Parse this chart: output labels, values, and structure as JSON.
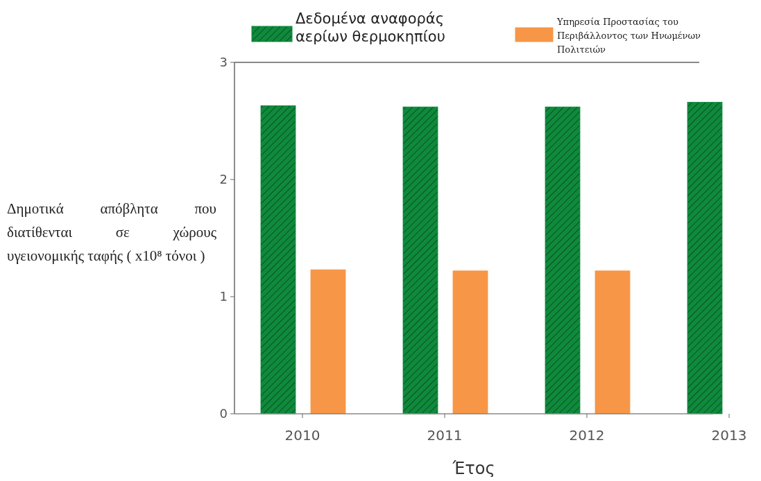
{
  "chart_data": {
    "type": "bar",
    "xlabel": "Έτος",
    "ylabel": "Δημοτικά απόβλητα που διατίθενται σε χώρους υγειονομικής ταφής ( x10⁸ τόνοι )",
    "categories": [
      "2010",
      "2011",
      "2012",
      "2013"
    ],
    "series": [
      {
        "name": "Δεδομένα αναφοράς αερίων θερμοκηπίου",
        "color": "#0f8a3c",
        "values": [
          2.63,
          2.62,
          2.62,
          2.66
        ]
      },
      {
        "name": "Υπηρεσία Προστασίας του Περιβάλλοντος των Ηνωμένων Πολιτειών",
        "color": "#f79646",
        "values": [
          1.23,
          1.22,
          1.22,
          null
        ]
      }
    ],
    "ylim": [
      0,
      3
    ],
    "yticks": [
      0,
      1,
      2,
      3
    ],
    "legend": "top",
    "grid": false
  }
}
